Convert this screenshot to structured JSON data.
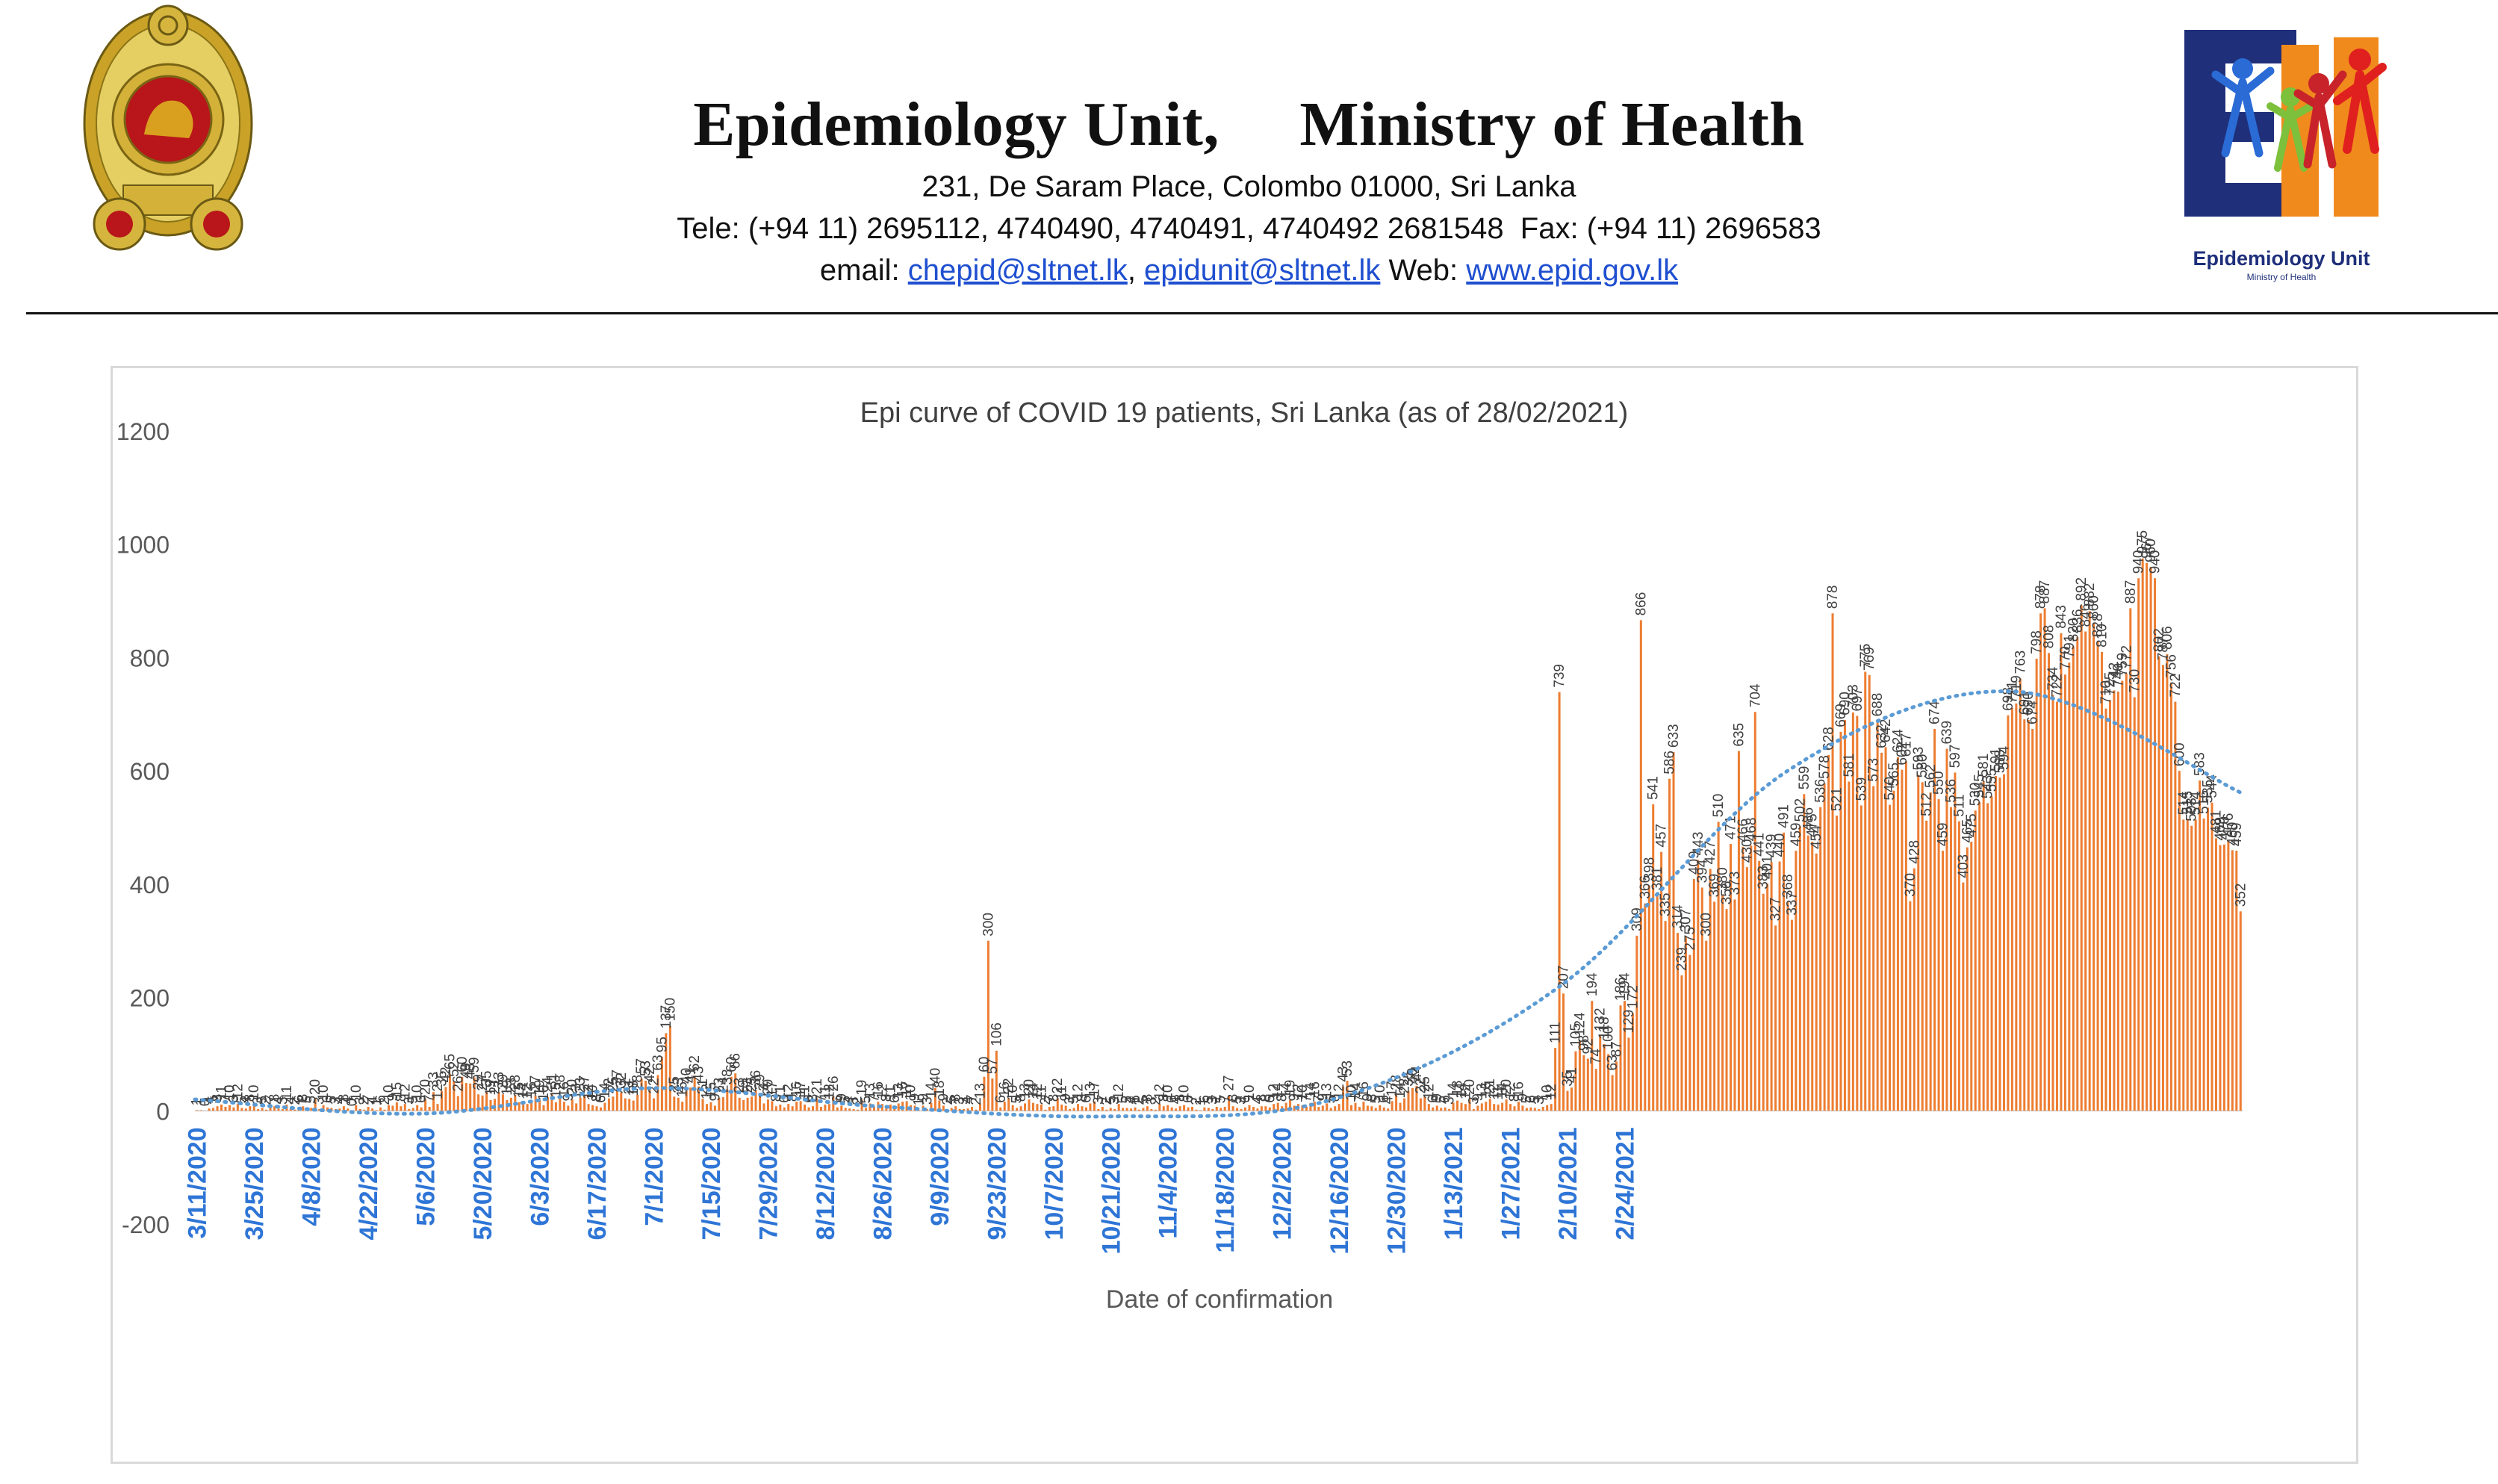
{
  "header": {
    "title_left": "Epidemiology Unit,",
    "title_right": "Ministry of Health",
    "address": "231, De Saram Place, Colombo 01000, Sri Lanka",
    "telephone": "Tele: (+94 11) 2695112, 4740490, 4740491, 4740492 2681548  Fax: (+94 11) 2696583",
    "email_label": "email:",
    "email_1": "chepid@sltnet.lk",
    "email_2": "epidunit@sltnet.lk",
    "web_label": "Web:",
    "web": "www.epid.gov.lk",
    "logo_caption": "Epidemiology Unit",
    "logo_subcaption": "Ministry of Health"
  },
  "colors": {
    "bar": "#ed7d31",
    "trend": "#5b9bd5",
    "date_labels": "#2e75d6",
    "axis_text": "#595959",
    "grid": "#d9d9d9"
  },
  "chart_data": {
    "type": "bar",
    "title": "Epi curve of COVID 19 patients, Sri Lanka  (as of 28/02/2021)",
    "xlabel": "Date of confirmation",
    "ylabel": "",
    "ylim": [
      -200,
      1200
    ],
    "yticks": [
      -200,
      0,
      200,
      400,
      600,
      800,
      1000,
      1200
    ],
    "date_range": [
      "3/11/2020",
      "2/28/2021"
    ],
    "x_tick_labels": [
      "3/11/2020",
      "3/25/2020",
      "4/8/2020",
      "4/22/2020",
      "5/6/2020",
      "5/20/2020",
      "6/3/2020",
      "6/17/2020",
      "7/1/2020",
      "7/15/2020",
      "7/29/2020",
      "8/12/2020",
      "8/26/2020",
      "9/9/2020",
      "9/23/2020",
      "10/7/2020",
      "10/21/2020",
      "11/4/2020",
      "11/18/2020",
      "12/2/2020",
      "12/16/2020",
      "12/30/2020",
      "1/13/2021",
      "1/27/2021",
      "2/10/2021",
      "2/24/2021"
    ],
    "grid": false,
    "series": [
      {
        "type": "bar",
        "values": [
          1,
          1,
          0,
          4,
          5,
          8,
          11,
          7,
          10,
          6,
          12,
          5,
          4,
          8,
          10,
          3,
          5,
          2,
          7,
          8,
          4,
          3,
          11,
          4,
          2,
          6,
          8,
          5,
          5,
          20,
          3,
          10,
          6,
          5,
          3,
          4,
          8,
          4,
          0,
          10,
          3,
          2,
          7,
          4,
          1,
          6,
          2,
          10,
          9,
          15,
          8,
          12,
          3,
          5,
          10,
          6,
          20,
          7,
          33,
          12,
          35,
          42,
          65,
          52,
          26,
          60,
          49,
          48,
          59,
          29,
          27,
          35,
          19,
          21,
          33,
          29,
          19,
          23,
          28,
          15,
          14,
          12,
          16,
          27,
          19,
          10,
          24,
          31,
          15,
          28,
          16,
          9,
          20,
          13,
          23,
          27,
          12,
          10,
          8,
          6,
          14,
          22,
          25,
          37,
          32,
          22,
          21,
          18,
          28,
          57,
          53,
          42,
          22,
          63,
          95,
          137,
          150,
          25,
          23,
          16,
          40,
          41,
          62,
          43,
          21,
          12,
          15,
          9,
          23,
          24,
          38,
          60,
          66,
          23,
          19,
          23,
          25,
          36,
          29,
          13,
          20,
          17,
          8,
          11,
          6,
          12,
          8,
          16,
          17,
          11,
          6,
          8,
          21,
          7,
          11,
          12,
          26,
          6,
          9,
          5,
          4,
          3,
          2,
          19,
          5,
          13,
          7,
          16,
          12,
          8,
          11,
          6,
          13,
          16,
          17,
          10,
          9,
          1,
          9,
          3,
          14,
          40,
          18,
          9,
          2,
          5,
          8,
          3,
          3,
          4,
          7,
          2,
          13,
          60,
          300,
          57,
          106,
          6,
          16,
          22,
          10,
          5,
          8,
          13,
          20,
          14,
          12,
          11,
          2,
          7,
          8,
          22,
          11,
          9,
          3,
          5,
          12,
          8,
          6,
          13,
          17,
          3,
          7,
          2,
          5,
          3,
          12,
          5,
          5,
          4,
          6,
          2,
          5,
          8,
          3,
          2,
          12,
          8,
          10,
          6,
          4,
          8,
          10,
          6,
          7,
          2,
          1,
          6,
          5,
          3,
          7,
          5,
          7,
          27,
          8,
          5,
          3,
          6,
          10,
          7,
          4,
          8,
          8,
          6,
          12,
          14,
          8,
          14,
          19,
          9,
          12,
          10,
          7,
          14,
          16,
          7,
          9,
          13,
          5,
          8,
          12,
          43,
          53,
          10,
          14,
          7,
          16,
          9,
          8,
          5,
          10,
          6,
          4,
          17,
          28,
          14,
          22,
          35,
          40,
          44,
          22,
          25,
          12,
          6,
          9,
          5,
          6,
          3,
          14,
          18,
          14,
          12,
          20,
          3,
          9,
          13,
          16,
          21,
          12,
          11,
          14,
          20,
          12,
          8,
          16,
          9,
          5,
          6,
          5,
          3,
          7,
          10,
          12,
          111,
          739,
          207,
          35,
          41,
          105,
          124,
          98,
          92,
          194,
          74,
          132,
          118,
          100,
          63,
          87,
          186,
          194,
          129,
          172,
          309,
          866,
          366,
          398,
          541,
          381,
          457,
          335,
          586,
          633,
          314,
          239,
          307,
          275,
          409,
          443,
          394,
          300,
          427,
          369,
          510,
          380,
          356,
          471,
          373,
          635,
          466,
          430,
          468,
          704,
          441,
          383,
          401,
          439,
          327,
          440,
          491,
          368,
          337,
          459,
          502,
          559,
          486,
          475,
          454,
          536,
          578,
          628,
          878,
          521,
          669,
          690,
          581,
          703,
          697,
          539,
          775,
          769,
          573,
          688,
          632,
          642,
          540,
          565,
          624,
          602,
          617,
          370,
          428,
          593,
          580,
          512,
          562,
          674,
          550,
          459,
          639,
          536,
          597,
          511,
          403,
          465,
          475,
          530,
          545,
          581,
          543,
          555,
          591,
          588,
          594,
          698,
          711,
          719,
          763,
          691,
          690,
          674,
          798,
          878,
          887,
          808,
          734,
          722,
          843,
          770,
          791,
          820,
          836,
          892,
          846,
          882,
          860,
          828,
          810,
          710,
          725,
          742,
          740,
          759,
          772,
          887,
          730,
          940,
          975,
          967,
          960,
          940,
          802,
          787,
          806,
          756,
          722,
          600,
          514,
          515,
          503,
          514,
          583,
          516,
          535,
          544,
          481,
          469,
          470,
          476,
          460,
          459,
          352
        ]
      },
      {
        "type": "trendline",
        "name": "moving-average trend",
        "values": [
          20,
          -5,
          40,
          8,
          -10,
          20,
          220,
          600,
          740,
          560
        ]
      }
    ]
  }
}
